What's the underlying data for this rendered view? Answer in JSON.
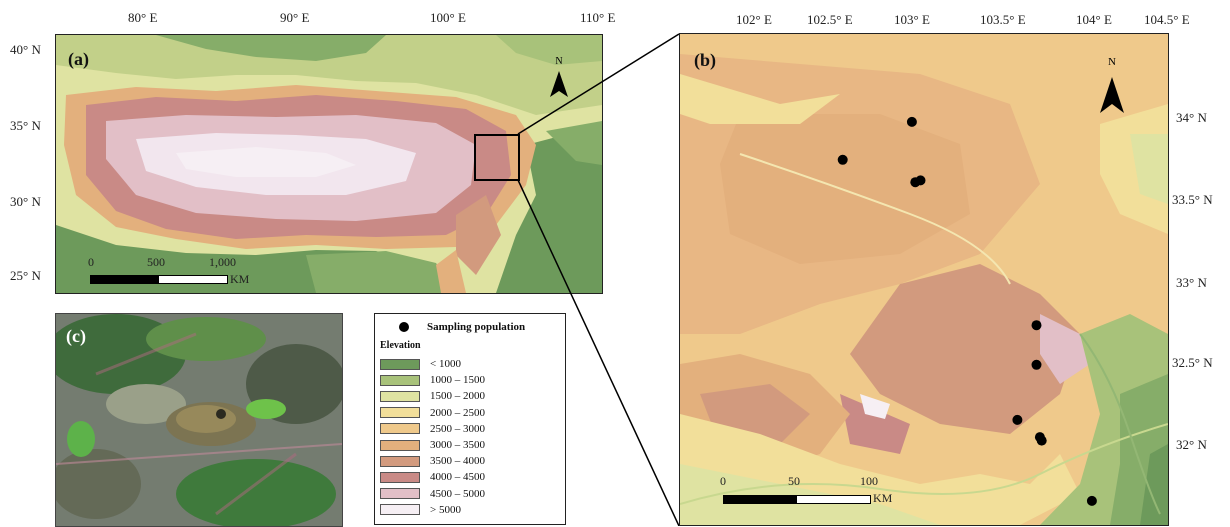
{
  "panel_a": {
    "label": "(a)",
    "lon_ticks": [
      "80° E",
      "90° E",
      "100° E",
      "110° E"
    ],
    "lat_ticks": [
      "40° N",
      "35° N",
      "30° N",
      "25° N"
    ],
    "north_label": "N",
    "scale": {
      "ticks": [
        "0",
        "500",
        "1,000"
      ],
      "unit": "KM"
    }
  },
  "panel_b": {
    "label": "(b)",
    "lon_ticks": [
      "102° E",
      "102.5° E",
      "103° E",
      "103.5° E",
      "104° E",
      "104.5° E"
    ],
    "lat_ticks": [
      "34° N",
      "33.5° N",
      "33° N",
      "32.5° N",
      "32° N"
    ],
    "north_label": "N",
    "scale": {
      "ticks": [
        "0",
        "50",
        "100"
      ],
      "unit": "KM"
    },
    "sampling_points": [
      {
        "lon": 102.89,
        "lat": 33.92
      },
      {
        "lon": 102.49,
        "lat": 33.7
      },
      {
        "lon": 102.91,
        "lat": 33.57
      },
      {
        "lon": 102.94,
        "lat": 33.58
      },
      {
        "lon": 103.61,
        "lat": 32.74
      },
      {
        "lon": 103.61,
        "lat": 32.51
      },
      {
        "lon": 103.5,
        "lat": 32.19
      },
      {
        "lon": 103.63,
        "lat": 32.09
      },
      {
        "lon": 103.64,
        "lat": 32.07
      },
      {
        "lon": 103.93,
        "lat": 31.72
      }
    ]
  },
  "panel_c": {
    "label": "(c)"
  },
  "legend": {
    "sampling_label": "Sampling population",
    "elevation_title": "Elevation",
    "classes": [
      {
        "label": "< 1000",
        "color": "#6d9a5b"
      },
      {
        "label": "1000 – 1500",
        "color": "#a8c27a"
      },
      {
        "label": "1500 – 2000",
        "color": "#dfe3a2"
      },
      {
        "label": "2000 – 2500",
        "color": "#f2df9a"
      },
      {
        "label": "2500 – 3000",
        "color": "#efc98b"
      },
      {
        "label": "3000 – 3500",
        "color": "#e3b07d"
      },
      {
        "label": "3500 – 4000",
        "color": "#d29a7e"
      },
      {
        "label": "4000 – 4500",
        "color": "#c98a86"
      },
      {
        "label": "4500 – 5000",
        "color": "#e2bfc7"
      },
      {
        "label": "> 5000",
        "color": "#f6eff4"
      }
    ]
  }
}
